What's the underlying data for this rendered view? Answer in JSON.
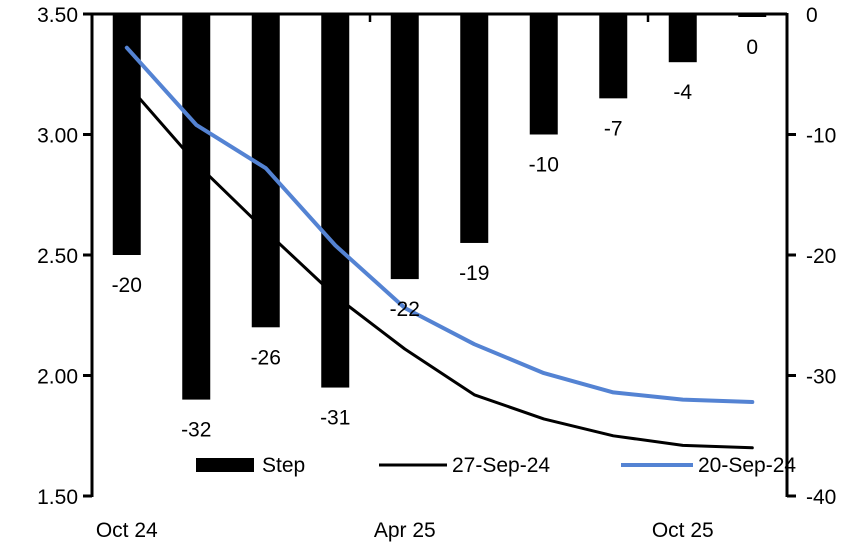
{
  "chart_data": {
    "type": "combo",
    "description": "Policy rate path with per-meeting step sizes",
    "n_categories": 10,
    "series": [
      {
        "name": "Step",
        "type": "bar",
        "axis": "right",
        "unit": "bp",
        "color": "#000000",
        "values": [
          -20,
          -32,
          -26,
          -31,
          -22,
          -19,
          -10,
          -7,
          -4,
          0
        ],
        "labels": [
          "-20",
          "-32",
          "-26",
          "-31",
          "-22",
          "-19",
          "-10",
          "-7",
          "-4",
          "0"
        ]
      },
      {
        "name": "27-Sep-24",
        "type": "line",
        "axis": "left",
        "color": "#000000",
        "values": [
          3.21,
          2.88,
          2.6,
          2.33,
          2.11,
          1.92,
          1.82,
          1.75,
          1.71,
          1.7
        ]
      },
      {
        "name": "20-Sep-24",
        "type": "line",
        "axis": "left",
        "color": "#5483D3",
        "values": [
          3.36,
          3.04,
          2.86,
          2.54,
          2.28,
          2.13,
          2.01,
          1.93,
          1.9,
          1.89
        ]
      }
    ],
    "x_axis": {
      "labels": [
        {
          "text": "Oct 24",
          "category_index": 1
        },
        {
          "text": "Apr 25",
          "category_index": 5
        },
        {
          "text": "Oct 25",
          "category_index": 9
        }
      ],
      "tick_interval_categories": 4
    },
    "left_axis": {
      "min": 1.5,
      "max": 3.5,
      "tick_labels": [
        "3.50",
        "3.00",
        "2.50",
        "2.00",
        "1.50"
      ],
      "tick_values": [
        3.5,
        3.0,
        2.5,
        2.0,
        1.5
      ]
    },
    "right_axis": {
      "min": -40,
      "max": 0,
      "tick_labels": [
        "0",
        "-10",
        "-20",
        "-30",
        "-40"
      ],
      "tick_values": [
        0,
        -10,
        -20,
        -30,
        -40
      ]
    },
    "legend": {
      "position": "bottom",
      "entries": [
        "Step",
        "27-Sep-24",
        "20-Sep-24"
      ]
    }
  }
}
